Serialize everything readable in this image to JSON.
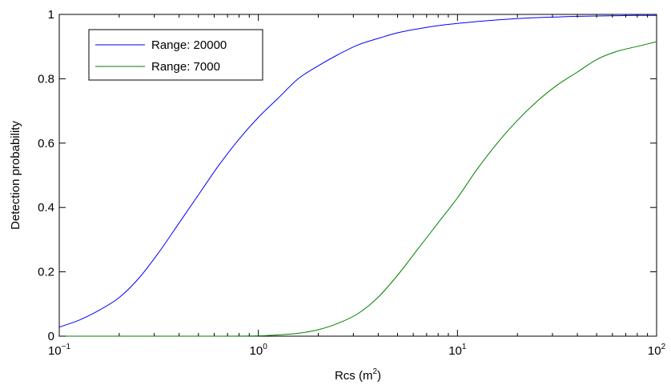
{
  "chart_data": {
    "type": "line",
    "title": "",
    "xlabel": "Rcs (m",
    "xlabel_sup": "2",
    "xlabel_end": ")",
    "ylabel": "Detection probability",
    "xscale": "log",
    "xlim": [
      0.1,
      100
    ],
    "ylim": [
      0,
      1
    ],
    "x_ticks": [
      {
        "value": 0.1,
        "base": "10",
        "exp": "−1"
      },
      {
        "value": 1,
        "base": "10",
        "exp": "0"
      },
      {
        "value": 10,
        "base": "10",
        "exp": "1"
      },
      {
        "value": 100,
        "base": "10",
        "exp": "2"
      }
    ],
    "y_ticks": [
      {
        "value": 0,
        "label": "0"
      },
      {
        "value": 0.2,
        "label": "0.2"
      },
      {
        "value": 0.4,
        "label": "0.4"
      },
      {
        "value": 0.6,
        "label": "0.6"
      },
      {
        "value": 0.8,
        "label": "0.8"
      },
      {
        "value": 1,
        "label": "1"
      }
    ],
    "grid": false,
    "legend_position": "top-left",
    "series": [
      {
        "name": "Range: 20000",
        "color": "#0000ff",
        "x": [
          0.1,
          0.126,
          0.158,
          0.2,
          0.251,
          0.316,
          0.398,
          0.501,
          0.631,
          0.794,
          1.0,
          1.259,
          1.585,
          1.995,
          2.512,
          3.162,
          3.981,
          5.012,
          6.31,
          7.943,
          10.0,
          12.59,
          15.85,
          19.95,
          25.12,
          31.62,
          39.81,
          50.12,
          63.1,
          79.43,
          100.0
        ],
        "y": [
          0.028,
          0.05,
          0.08,
          0.12,
          0.18,
          0.26,
          0.35,
          0.44,
          0.53,
          0.61,
          0.68,
          0.74,
          0.8,
          0.84,
          0.875,
          0.905,
          0.925,
          0.943,
          0.955,
          0.965,
          0.972,
          0.978,
          0.983,
          0.987,
          0.99,
          0.992,
          0.994,
          0.995,
          0.996,
          0.997,
          0.997
        ]
      },
      {
        "name": "Range: 7000",
        "color": "#008000",
        "x": [
          0.1,
          0.2,
          0.5,
          1.0,
          1.259,
          1.585,
          1.995,
          2.512,
          3.162,
          3.981,
          5.012,
          6.31,
          7.943,
          10.0,
          12.59,
          15.85,
          19.95,
          25.12,
          31.62,
          39.81,
          50.12,
          63.1,
          79.43,
          100.0
        ],
        "y": [
          0.0,
          0.0,
          0.0,
          0.001,
          0.004,
          0.009,
          0.02,
          0.04,
          0.07,
          0.12,
          0.19,
          0.27,
          0.35,
          0.43,
          0.52,
          0.6,
          0.67,
          0.73,
          0.78,
          0.82,
          0.86,
          0.885,
          0.9,
          0.915
        ]
      }
    ]
  }
}
